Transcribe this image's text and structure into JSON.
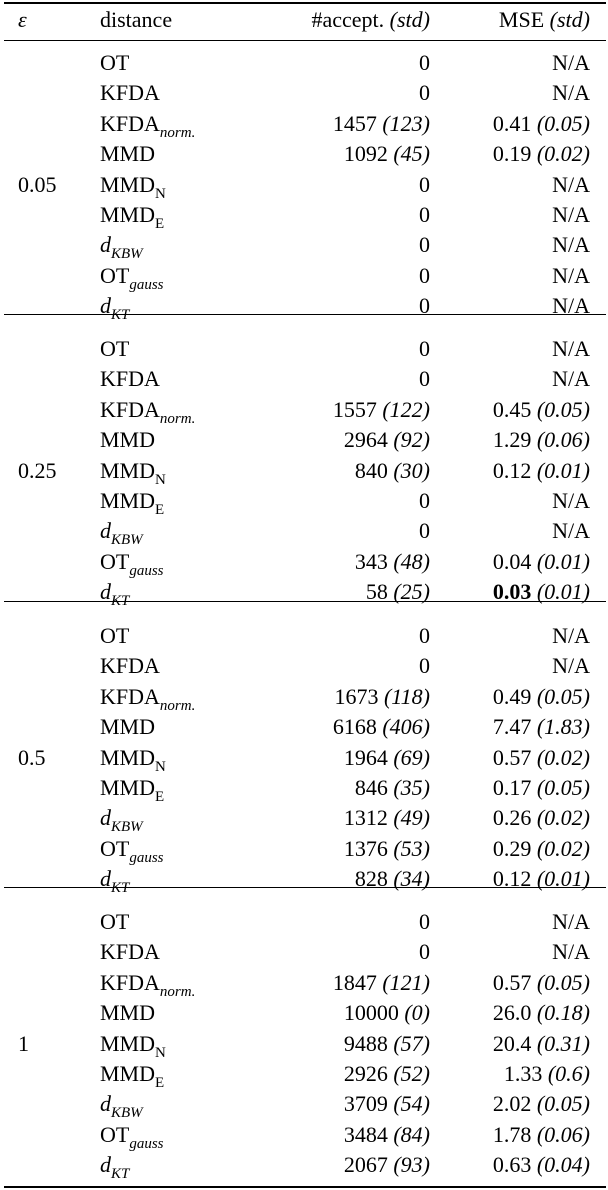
{
  "table": {
    "header": {
      "epsilon": "ε",
      "distance": "distance",
      "accept": {
        "text": "#accept.",
        "std": "(std)"
      },
      "mse": {
        "text": "MSE",
        "std": "(std)"
      }
    },
    "groups": [
      {
        "epsilon": "0.05",
        "rows": [
          {
            "distance": {
              "text": "OT"
            },
            "accept": {
              "mean": "0"
            },
            "mse": {
              "mean": "N/A"
            }
          },
          {
            "distance": {
              "text": "KFDA"
            },
            "accept": {
              "mean": "0"
            },
            "mse": {
              "mean": "N/A"
            }
          },
          {
            "distance": {
              "text": "KFDA",
              "sub": "norm.",
              "sub_italic": true
            },
            "accept": {
              "mean": "1457",
              "std": "(123)"
            },
            "mse": {
              "mean": "0.41",
              "std": "(0.05)"
            }
          },
          {
            "distance": {
              "text": "MMD"
            },
            "accept": {
              "mean": "1092",
              "std": "(45)"
            },
            "mse": {
              "mean": "0.19",
              "std": "(0.02)"
            }
          },
          {
            "distance": {
              "text": "MMD",
              "sub": "N"
            },
            "accept": {
              "mean": "0"
            },
            "mse": {
              "mean": "N/A"
            }
          },
          {
            "distance": {
              "text": "MMD",
              "sub": "E"
            },
            "accept": {
              "mean": "0"
            },
            "mse": {
              "mean": "N/A"
            }
          },
          {
            "distance": {
              "text": "d",
              "sub": "KBW",
              "italic": true,
              "sub_italic": true
            },
            "accept": {
              "mean": "0"
            },
            "mse": {
              "mean": "N/A"
            }
          },
          {
            "distance": {
              "text": "OT",
              "sub": "gauss",
              "sub_italic": true
            },
            "accept": {
              "mean": "0"
            },
            "mse": {
              "mean": "N/A"
            }
          },
          {
            "distance": {
              "text": "d",
              "sub": "KT",
              "italic": true,
              "sub_italic": true
            },
            "accept": {
              "mean": "0"
            },
            "mse": {
              "mean": "N/A"
            }
          }
        ]
      },
      {
        "epsilon": "0.25",
        "rows": [
          {
            "distance": {
              "text": "OT"
            },
            "accept": {
              "mean": "0"
            },
            "mse": {
              "mean": "N/A"
            }
          },
          {
            "distance": {
              "text": "KFDA"
            },
            "accept": {
              "mean": "0"
            },
            "mse": {
              "mean": "N/A"
            }
          },
          {
            "distance": {
              "text": "KFDA",
              "sub": "norm.",
              "sub_italic": true
            },
            "accept": {
              "mean": "1557",
              "std": "(122)"
            },
            "mse": {
              "mean": "0.45",
              "std": "(0.05)"
            }
          },
          {
            "distance": {
              "text": "MMD"
            },
            "accept": {
              "mean": "2964",
              "std": "(92)"
            },
            "mse": {
              "mean": "1.29",
              "std": "(0.06)"
            }
          },
          {
            "distance": {
              "text": "MMD",
              "sub": "N"
            },
            "accept": {
              "mean": "840",
              "std": "(30)"
            },
            "mse": {
              "mean": "0.12",
              "std": "(0.01)"
            }
          },
          {
            "distance": {
              "text": "MMD",
              "sub": "E"
            },
            "accept": {
              "mean": "0"
            },
            "mse": {
              "mean": "N/A"
            }
          },
          {
            "distance": {
              "text": "d",
              "sub": "KBW",
              "italic": true,
              "sub_italic": true
            },
            "accept": {
              "mean": "0"
            },
            "mse": {
              "mean": "N/A"
            }
          },
          {
            "distance": {
              "text": "OT",
              "sub": "gauss",
              "sub_italic": true
            },
            "accept": {
              "mean": "343",
              "std": "(48)"
            },
            "mse": {
              "mean": "0.04",
              "std": "(0.01)"
            }
          },
          {
            "distance": {
              "text": "d",
              "sub": "KT",
              "italic": true,
              "sub_italic": true
            },
            "accept": {
              "mean": "58",
              "std": "(25)"
            },
            "mse": {
              "mean": "0.03",
              "std": "(0.01)",
              "bold": true
            }
          }
        ]
      },
      {
        "epsilon": "0.5",
        "rows": [
          {
            "distance": {
              "text": "OT"
            },
            "accept": {
              "mean": "0"
            },
            "mse": {
              "mean": "N/A"
            }
          },
          {
            "distance": {
              "text": "KFDA"
            },
            "accept": {
              "mean": "0"
            },
            "mse": {
              "mean": "N/A"
            }
          },
          {
            "distance": {
              "text": "KFDA",
              "sub": "norm.",
              "sub_italic": true
            },
            "accept": {
              "mean": "1673",
              "std": "(118)"
            },
            "mse": {
              "mean": "0.49",
              "std": "(0.05)"
            }
          },
          {
            "distance": {
              "text": "MMD"
            },
            "accept": {
              "mean": "6168",
              "std": "(406)"
            },
            "mse": {
              "mean": "7.47",
              "std": "(1.83)"
            }
          },
          {
            "distance": {
              "text": "MMD",
              "sub": "N"
            },
            "accept": {
              "mean": "1964",
              "std": "(69)"
            },
            "mse": {
              "mean": "0.57",
              "std": "(0.02)"
            }
          },
          {
            "distance": {
              "text": "MMD",
              "sub": "E"
            },
            "accept": {
              "mean": "846",
              "std": "(35)"
            },
            "mse": {
              "mean": "0.17",
              "std": "(0.05)"
            }
          },
          {
            "distance": {
              "text": "d",
              "sub": "KBW",
              "italic": true,
              "sub_italic": true
            },
            "accept": {
              "mean": "1312",
              "std": "(49)"
            },
            "mse": {
              "mean": "0.26",
              "std": "(0.02)"
            }
          },
          {
            "distance": {
              "text": "OT",
              "sub": "gauss",
              "sub_italic": true
            },
            "accept": {
              "mean": "1376",
              "std": "(53)"
            },
            "mse": {
              "mean": "0.29",
              "std": "(0.02)"
            }
          },
          {
            "distance": {
              "text": "d",
              "sub": "KT",
              "italic": true,
              "sub_italic": true
            },
            "accept": {
              "mean": "828",
              "std": "(34)"
            },
            "mse": {
              "mean": "0.12",
              "std": "(0.01)"
            }
          }
        ]
      },
      {
        "epsilon": "1",
        "rows": [
          {
            "distance": {
              "text": "OT"
            },
            "accept": {
              "mean": "0"
            },
            "mse": {
              "mean": "N/A"
            }
          },
          {
            "distance": {
              "text": "KFDA"
            },
            "accept": {
              "mean": "0"
            },
            "mse": {
              "mean": "N/A"
            }
          },
          {
            "distance": {
              "text": "KFDA",
              "sub": "norm.",
              "sub_italic": true
            },
            "accept": {
              "mean": "1847",
              "std": "(121)"
            },
            "mse": {
              "mean": "0.57",
              "std": "(0.05)"
            }
          },
          {
            "distance": {
              "text": "MMD"
            },
            "accept": {
              "mean": "10000",
              "std": "(0)"
            },
            "mse": {
              "mean": "26.0",
              "std": "(0.18)"
            }
          },
          {
            "distance": {
              "text": "MMD",
              "sub": "N"
            },
            "accept": {
              "mean": "9488",
              "std": "(57)"
            },
            "mse": {
              "mean": "20.4",
              "std": "(0.31)"
            }
          },
          {
            "distance": {
              "text": "MMD",
              "sub": "E"
            },
            "accept": {
              "mean": "2926",
              "std": "(52)"
            },
            "mse": {
              "mean": "1.33",
              "std": "(0.6)"
            }
          },
          {
            "distance": {
              "text": "d",
              "sub": "KBW",
              "italic": true,
              "sub_italic": true
            },
            "accept": {
              "mean": "3709",
              "std": "(54)"
            },
            "mse": {
              "mean": "2.02",
              "std": "(0.05)"
            }
          },
          {
            "distance": {
              "text": "OT",
              "sub": "gauss",
              "sub_italic": true
            },
            "accept": {
              "mean": "3484",
              "std": "(84)"
            },
            "mse": {
              "mean": "1.78",
              "std": "(0.06)"
            }
          },
          {
            "distance": {
              "text": "d",
              "sub": "KT",
              "italic": true,
              "sub_italic": true
            },
            "accept": {
              "mean": "2067",
              "std": "(93)"
            },
            "mse": {
              "mean": "0.63",
              "std": "(0.04)"
            }
          }
        ]
      }
    ]
  }
}
